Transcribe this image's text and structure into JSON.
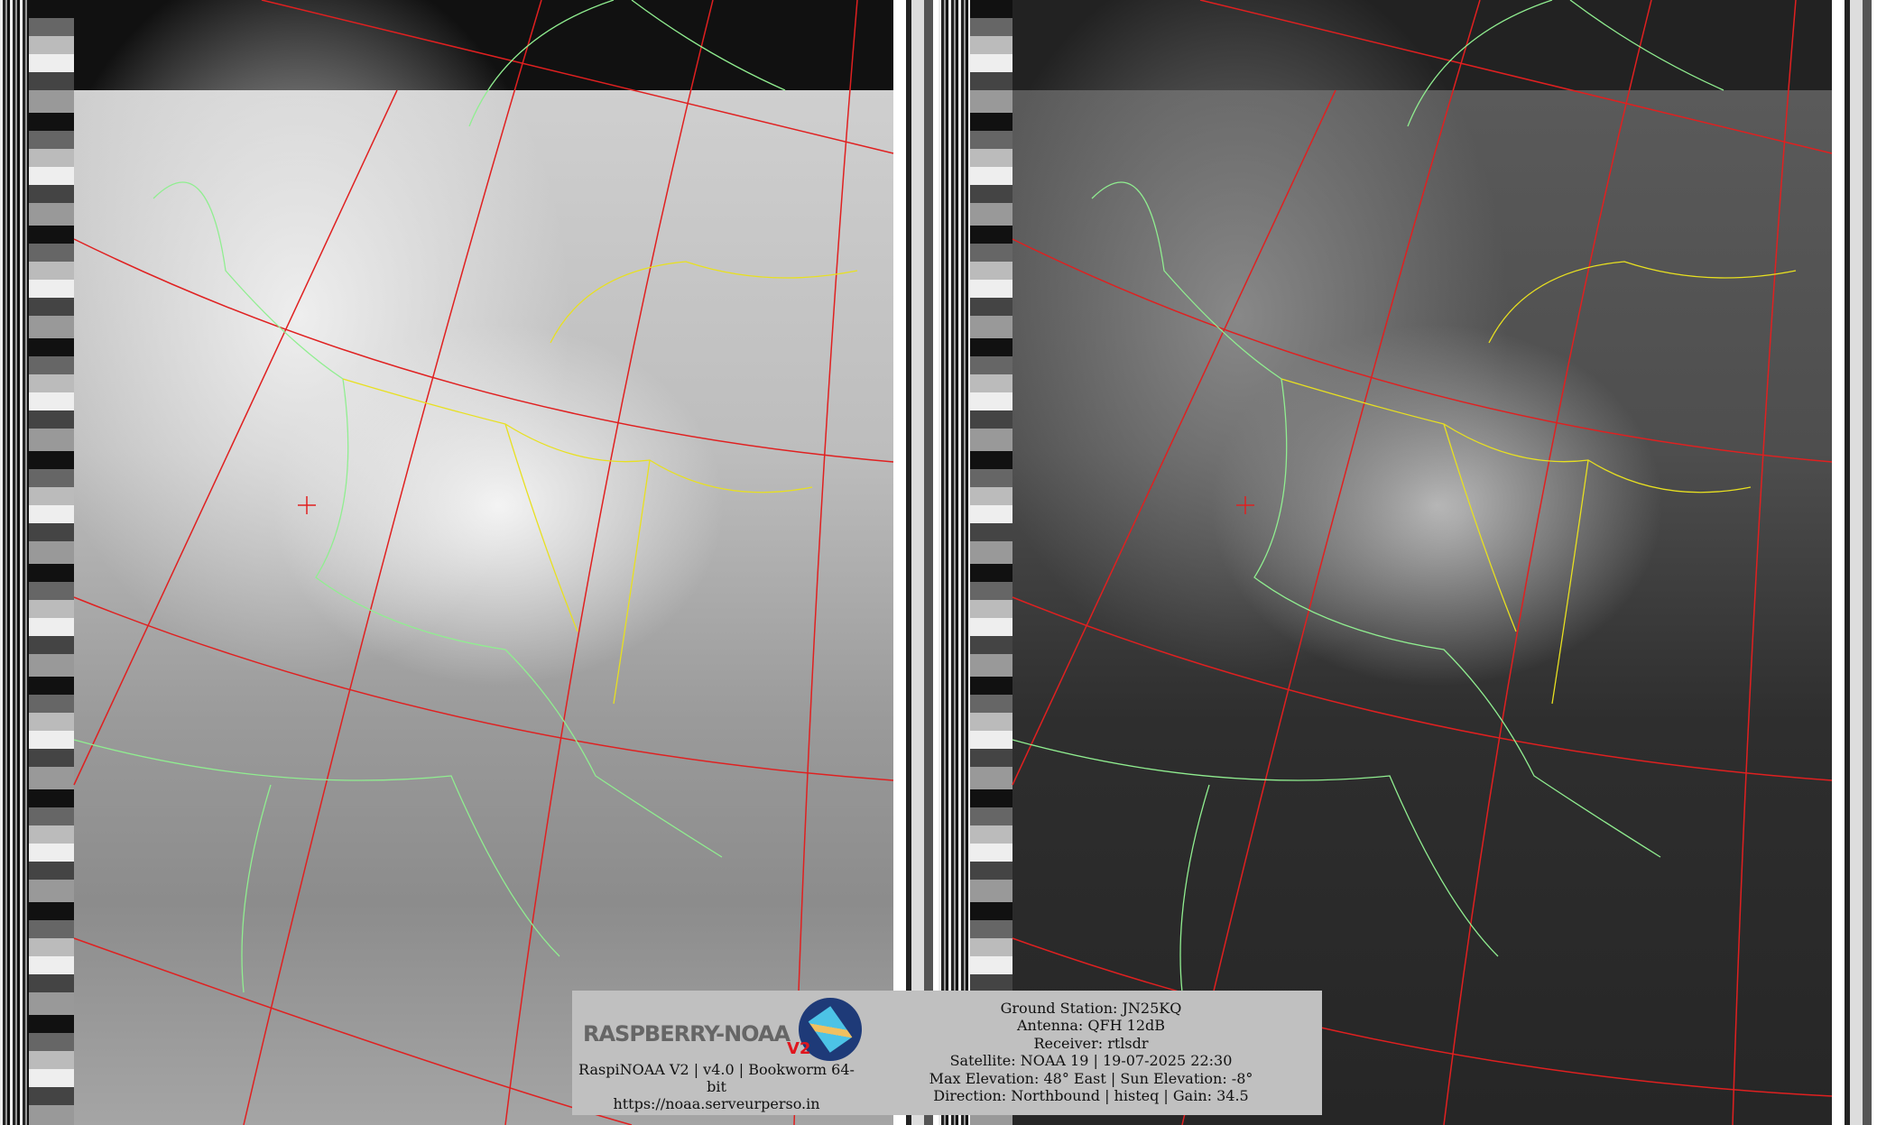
{
  "logo": {
    "text": "RASPBERRY-NOAA",
    "badge": "V2"
  },
  "footer_left": {
    "version_line": "RaspiNOAA V2 | v4.0 | Bookworm 64-bit",
    "url": "https://noaa.serveurperso.in"
  },
  "pass_info": {
    "ground_station": "Ground Station: JN25KQ",
    "antenna": "Antenna: QFH 12dB",
    "receiver": "Receiver: rtlsdr",
    "satellite": "Satellite: NOAA 19 | 19-07-2025 22:30",
    "elevation": "Max Elevation: 48° East | Sun Elevation: -8°",
    "direction": "Direction: Northbound | histeq | Gain: 34.5"
  },
  "colors": {
    "grid": "#e02020",
    "coastline": "#90ee90",
    "borders": "#e8e020",
    "info_bg": "#c0c0c0"
  }
}
